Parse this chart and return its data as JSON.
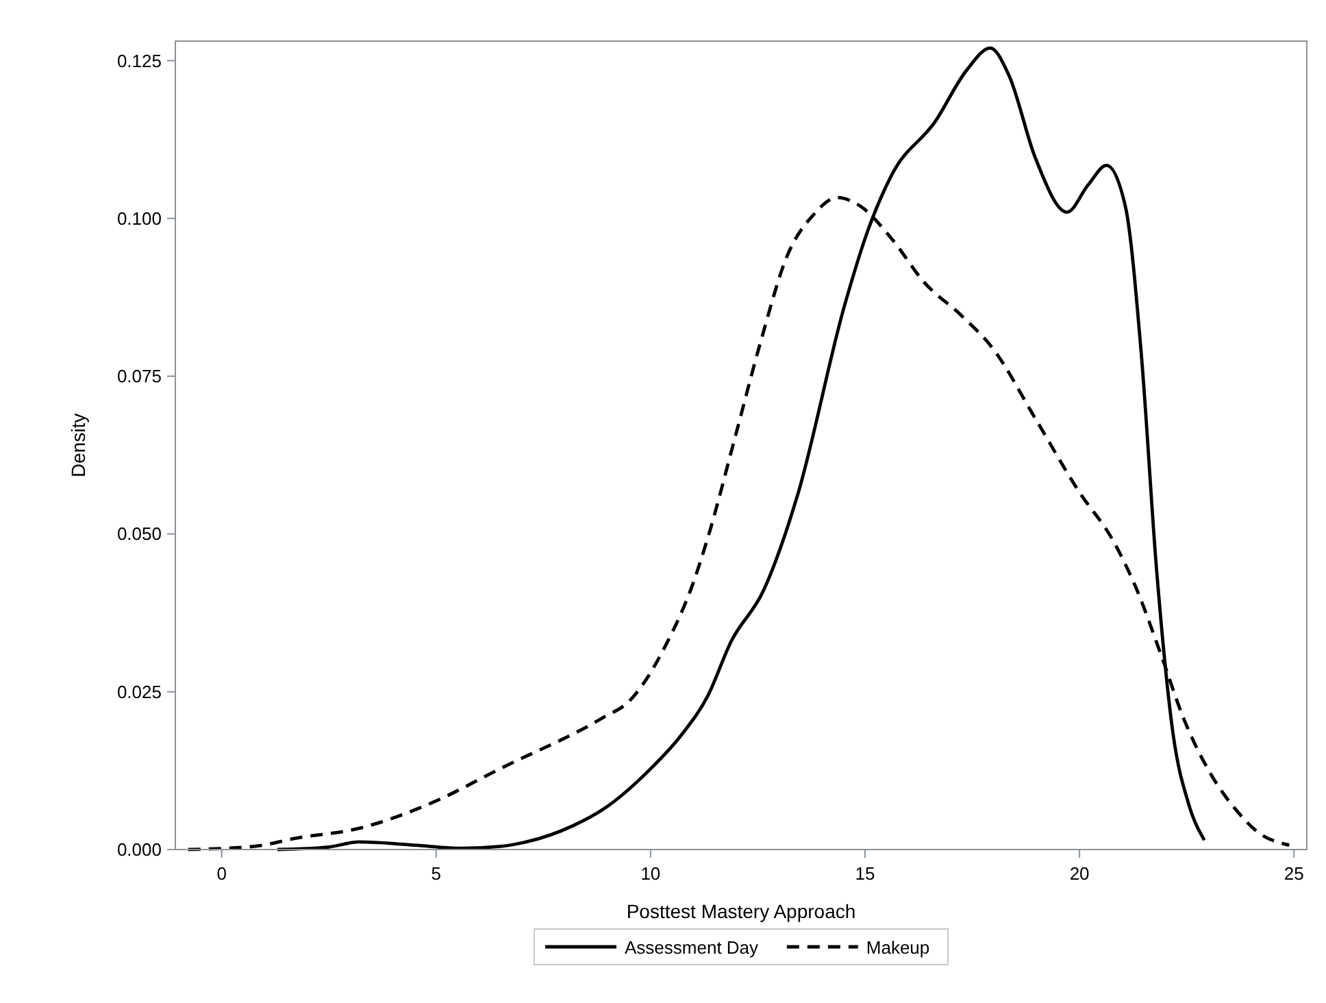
{
  "chart_data": {
    "type": "line",
    "xlabel": "Posttest Mastery Approach",
    "ylabel": "Density",
    "xlim": [
      -1.08,
      25.3
    ],
    "xticks": [
      0,
      5,
      10,
      15,
      20,
      25
    ],
    "ylim": [
      0,
      0.1281
    ],
    "yticks": [
      {
        "value": 0,
        "label": "0.000"
      },
      {
        "value": 0.025,
        "label": "0.025"
      },
      {
        "value": 0.05,
        "label": "0.050"
      },
      {
        "value": 0.075,
        "label": "0.075"
      },
      {
        "value": 0.1,
        "label": "0.100"
      },
      {
        "value": 0.125,
        "label": "0.125"
      }
    ],
    "grid": false,
    "legend": "bottom",
    "marker": "none",
    "series": [
      {
        "name": "Assessment Day",
        "color": "#000000",
        "line_style": "solid",
        "x": [
          1.3,
          2.5,
          3.2,
          4.5,
          5.6,
          6.5,
          7.1,
          8.2,
          8.9,
          10,
          10.7,
          11.33,
          11.88,
          12.63,
          13.42,
          14.53,
          15.04,
          15.63,
          16.63,
          17.37,
          17.92,
          18.36,
          18.97,
          19.71,
          20.2,
          20.63,
          21.07,
          21.44,
          21.8,
          22.18,
          22.55,
          22.91
        ],
        "values": [
          0,
          0.0004,
          0.0012,
          0.0007,
          0.0002,
          0.0005,
          0.0012,
          0.0038,
          0.0064,
          0.0128,
          0.018,
          0.0243,
          0.033,
          0.041,
          0.056,
          0.0864,
          0.0976,
          0.107,
          0.1153,
          0.1235,
          0.127,
          0.1226,
          0.1096,
          0.101,
          0.1053,
          0.1084,
          0.1019,
          0.0786,
          0.0441,
          0.0184,
          0.0071,
          0.0015
        ]
      },
      {
        "name": "Makeup",
        "color": "#000000",
        "line_style": "dashed",
        "x": [
          -0.78,
          0.76,
          1.74,
          3.23,
          4.83,
          6.55,
          8.89,
          9.5,
          10.37,
          10.98,
          11.33,
          11.95,
          12.56,
          13.18,
          13.8,
          14.35,
          14.9,
          15.63,
          16.39,
          17.25,
          17.98,
          18.97,
          19.96,
          20.82,
          21.31,
          21.93,
          22.42,
          23.04,
          23.66,
          24.15,
          24.89
        ],
        "values": [
          0,
          0.0005,
          0.0018,
          0.0034,
          0.0072,
          0.013,
          0.0209,
          0.0235,
          0.0326,
          0.042,
          0.0493,
          0.0648,
          0.0803,
          0.094,
          0.1006,
          0.1033,
          0.1019,
          0.0967,
          0.0898,
          0.0846,
          0.0794,
          0.0683,
          0.057,
          0.0485,
          0.0416,
          0.0303,
          0.0209,
          0.0122,
          0.0062,
          0.0028,
          0.0007
        ]
      }
    ]
  }
}
